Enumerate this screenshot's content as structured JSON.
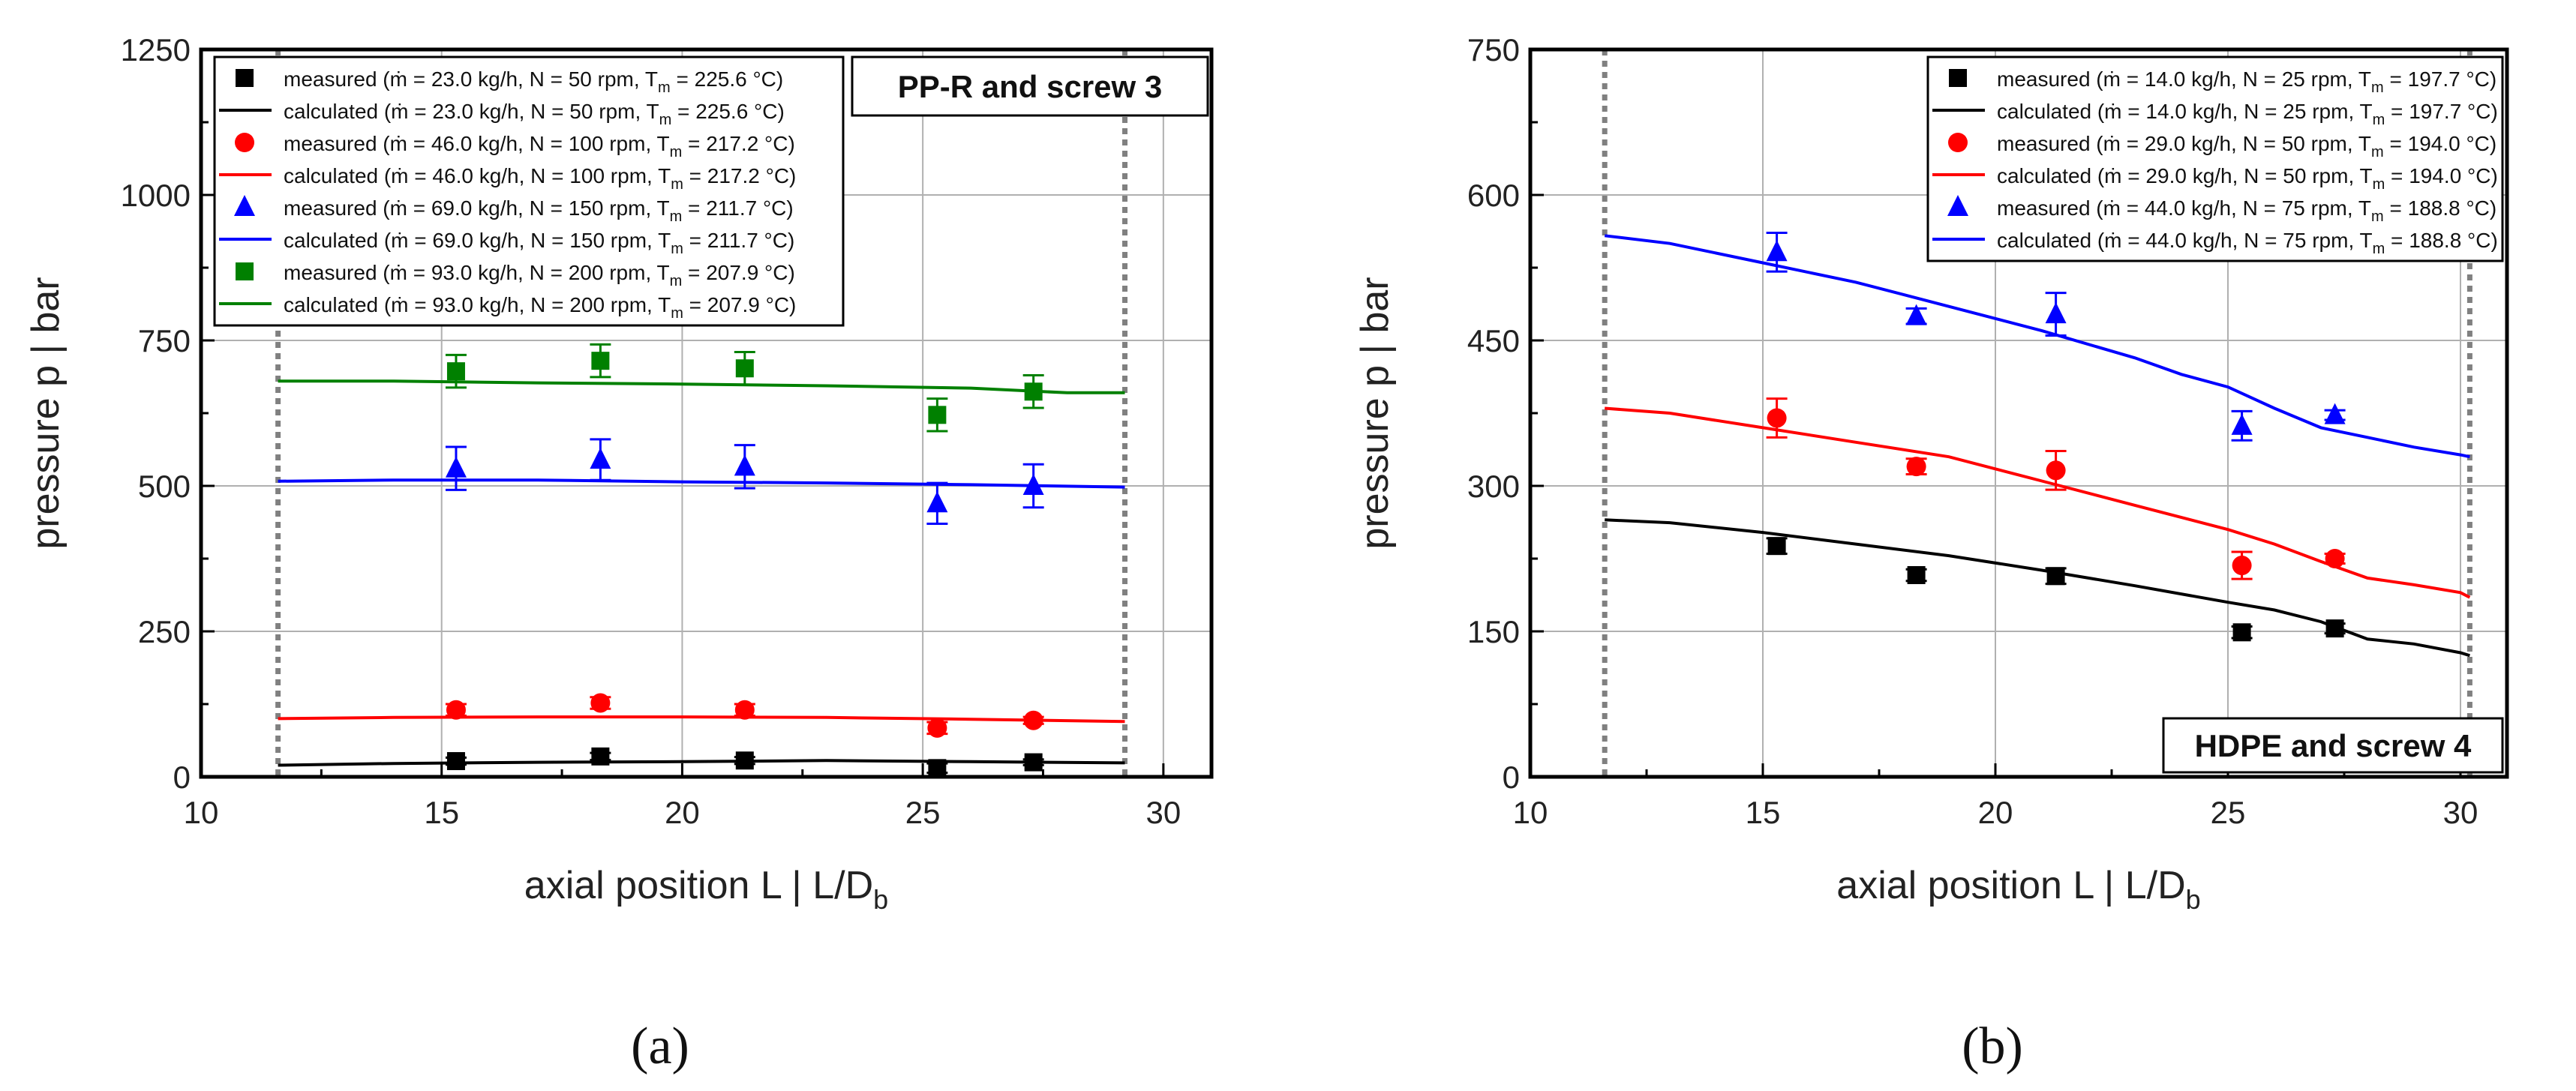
{
  "chart_data": [
    {
      "type": "line",
      "panel_label": "(a)",
      "title": "PP-R and screw 3",
      "title_position": "top-right",
      "xlabel": "axial position L  |  L/D",
      "xlabel_sub": "b",
      "ylabel": "pressure p  |  bar",
      "xlim": [
        10,
        31
      ],
      "ylim": [
        0,
        1250
      ],
      "xticks": [
        10,
        15,
        20,
        25,
        30
      ],
      "yticks": [
        0,
        250,
        500,
        750,
        1000,
        1250
      ],
      "xtick_labels": [
        "10",
        "15",
        "20",
        "25",
        "30"
      ],
      "ytick_labels": [
        "0",
        "250",
        "500",
        "750",
        "1000",
        "1250"
      ],
      "vlines": [
        11.6,
        29.2
      ],
      "legend_position": "top-left",
      "series": [
        {
          "name": "measured",
          "kind": "measured",
          "marker": "square",
          "color": "#000000",
          "legend_pre": "measured (ṁ = 23.0 kg/h, N = 50 rpm,   T",
          "legend_sub": "m",
          "legend_post": " = 225.6 °C)",
          "x": [
            15.3,
            18.3,
            21.3,
            25.3,
            27.3
          ],
          "y": [
            27,
            35,
            28,
            15,
            25
          ],
          "err": [
            6,
            6,
            6,
            8,
            5
          ]
        },
        {
          "name": "calculated",
          "kind": "calculated",
          "color": "#000000",
          "legend_pre": "calculated (ṁ = 23.0 kg/h, N = 50 rpm,   T",
          "legend_sub": "m",
          "legend_post": " = 225.6 °C)",
          "x": [
            11.6,
            14,
            17,
            20,
            23,
            26,
            29.2
          ],
          "y": [
            20,
            23,
            25,
            26,
            28,
            26,
            24
          ]
        },
        {
          "name": "measured",
          "kind": "measured",
          "marker": "circle",
          "color": "#ff0000",
          "legend_pre": "measured (ṁ = 46.0 kg/h, N = 100 rpm, T",
          "legend_sub": "m",
          "legend_post": " = 217.2 °C)",
          "x": [
            15.3,
            18.3,
            21.3,
            25.3,
            27.3
          ],
          "y": [
            115,
            127,
            115,
            84,
            97
          ],
          "err": [
            10,
            10,
            10,
            10,
            6
          ]
        },
        {
          "name": "calculated",
          "kind": "calculated",
          "color": "#ff0000",
          "legend_pre": "calculated (ṁ = 46.0 kg/h, N = 100 rpm, T",
          "legend_sub": "m",
          "legend_post": " = 217.2 °C)",
          "x": [
            11.6,
            14,
            17,
            20,
            23,
            26,
            29.2
          ],
          "y": [
            100,
            102,
            103,
            103,
            102,
            99,
            95
          ]
        },
        {
          "name": "measured",
          "kind": "measured",
          "marker": "triangle",
          "color": "#0000ff",
          "legend_pre": "measured (ṁ = 69.0 kg/h, N = 150 rpm, T",
          "legend_sub": "m",
          "legend_post": " = 211.7 °C)",
          "x": [
            15.3,
            18.3,
            21.3,
            25.3,
            27.3
          ],
          "y": [
            530,
            545,
            533,
            470,
            500
          ],
          "err": [
            37,
            35,
            37,
            35,
            37
          ]
        },
        {
          "name": "calculated",
          "kind": "calculated",
          "color": "#0000ff",
          "legend_pre": "calculated (ṁ = 69.0 kg/h, N = 150 rpm, T",
          "legend_sub": "m",
          "legend_post": " = 211.7 °C)",
          "x": [
            11.6,
            14,
            17,
            20,
            23,
            26,
            29.2
          ],
          "y": [
            508,
            510,
            510,
            507,
            505,
            502,
            498
          ]
        },
        {
          "name": "measured",
          "kind": "measured",
          "marker": "square",
          "color": "#008000",
          "legend_pre": "measured (ṁ = 93.0 kg/h, N = 200 rpm, T",
          "legend_sub": "m",
          "legend_post": " = 207.9 °C)",
          "x": [
            15.3,
            18.3,
            21.3,
            25.3,
            27.3
          ],
          "y": [
            697,
            715,
            702,
            622,
            662
          ],
          "err": [
            28,
            28,
            28,
            28,
            28
          ]
        },
        {
          "name": "calculated",
          "kind": "calculated",
          "color": "#008000",
          "legend_pre": "calculated (ṁ = 93.0 kg/h, N = 200 rpm, T",
          "legend_sub": "m",
          "legend_post": " = 207.9 °C)",
          "x": [
            11.6,
            14,
            17,
            20,
            23,
            26,
            28,
            29.2
          ],
          "y": [
            680,
            680,
            677,
            675,
            672,
            668,
            660,
            660
          ]
        }
      ]
    },
    {
      "type": "line",
      "panel_label": "(b)",
      "title": "HDPE and screw 4",
      "title_position": "bottom-right",
      "xlabel": "axial position L  |  L/D",
      "xlabel_sub": "b",
      "ylabel": "pressure p  |  bar",
      "xlim": [
        10,
        31
      ],
      "ylim": [
        0,
        750
      ],
      "xticks": [
        10,
        15,
        20,
        25,
        30
      ],
      "yticks": [
        0,
        150,
        300,
        450,
        600,
        750
      ],
      "xtick_labels": [
        "10",
        "15",
        "20",
        "25",
        "30"
      ],
      "ytick_labels": [
        "0",
        "150",
        "300",
        "450",
        "600",
        "750"
      ],
      "vlines": [
        11.6,
        30.2
      ],
      "legend_position": "top-right",
      "series": [
        {
          "name": "measured",
          "kind": "measured",
          "marker": "square",
          "color": "#000000",
          "legend_pre": "measured (ṁ = 14.0 kg/h, N = 25 rpm, T",
          "legend_sub": "m",
          "legend_post": " = 197.7 °C)",
          "x": [
            15.3,
            18.3,
            21.3,
            25.3,
            27.3
          ],
          "y": [
            238,
            208,
            207,
            149,
            153
          ],
          "err": [
            8,
            6,
            8,
            6,
            5
          ]
        },
        {
          "name": "calculated",
          "kind": "calculated",
          "color": "#000000",
          "legend_pre": "calculated (ṁ = 14.0 kg/h, N = 25 rpm, T",
          "legend_sub": "m",
          "legend_post": " = 197.7 °C)",
          "x": [
            11.6,
            13,
            15,
            17,
            19,
            21,
            23,
            25,
            26,
            27,
            28,
            29,
            30,
            30.2
          ],
          "y": [
            265,
            262,
            252,
            240,
            228,
            213,
            197,
            180,
            172,
            160,
            142,
            137,
            128,
            125
          ]
        },
        {
          "name": "measured",
          "kind": "measured",
          "marker": "circle",
          "color": "#ff0000",
          "legend_pre": "measured (ṁ = 29.0 kg/h, N = 50 rpm, T",
          "legend_sub": "m",
          "legend_post": " = 194.0 °C)",
          "x": [
            15.3,
            18.3,
            21.3,
            25.3,
            27.3
          ],
          "y": [
            370,
            320,
            316,
            218,
            225
          ],
          "err": [
            20,
            8,
            20,
            14,
            5
          ]
        },
        {
          "name": "calculated",
          "kind": "calculated",
          "color": "#ff0000",
          "legend_pre": "calculated (ṁ = 29.0 kg/h, N = 50 rpm, T",
          "legend_sub": "m",
          "legend_post": " = 194.0 °C)",
          "x": [
            11.6,
            13,
            15,
            17,
            19,
            21,
            23,
            25,
            26,
            27,
            28,
            29,
            30,
            30.2
          ],
          "y": [
            380,
            375,
            360,
            345,
            330,
            305,
            280,
            255,
            240,
            222,
            205,
            198,
            190,
            185
          ]
        },
        {
          "name": "measured",
          "kind": "measured",
          "marker": "triangle",
          "color": "#0000ff",
          "legend_pre": "measured (ṁ = 44.0 kg/h, N = 75 rpm, T",
          "legend_sub": "m",
          "legend_post": " = 188.8 °C)",
          "x": [
            15.3,
            18.3,
            21.3,
            25.3,
            27.3
          ],
          "y": [
            541,
            475,
            477,
            362,
            373
          ],
          "err": [
            20,
            8,
            22,
            15,
            5
          ]
        },
        {
          "name": "calculated",
          "kind": "calculated",
          "color": "#0000ff",
          "legend_pre": "calculated (ṁ = 44.0 kg/h, N = 75 rpm, T",
          "legend_sub": "m",
          "legend_post": " = 188.8 °C)",
          "x": [
            11.6,
            13,
            15,
            17,
            19,
            21,
            23,
            24,
            25,
            26,
            27,
            28,
            29,
            30,
            30.2
          ],
          "y": [
            558,
            550,
            530,
            510,
            485,
            460,
            432,
            415,
            402,
            380,
            360,
            350,
            340,
            332,
            330
          ]
        }
      ]
    }
  ]
}
